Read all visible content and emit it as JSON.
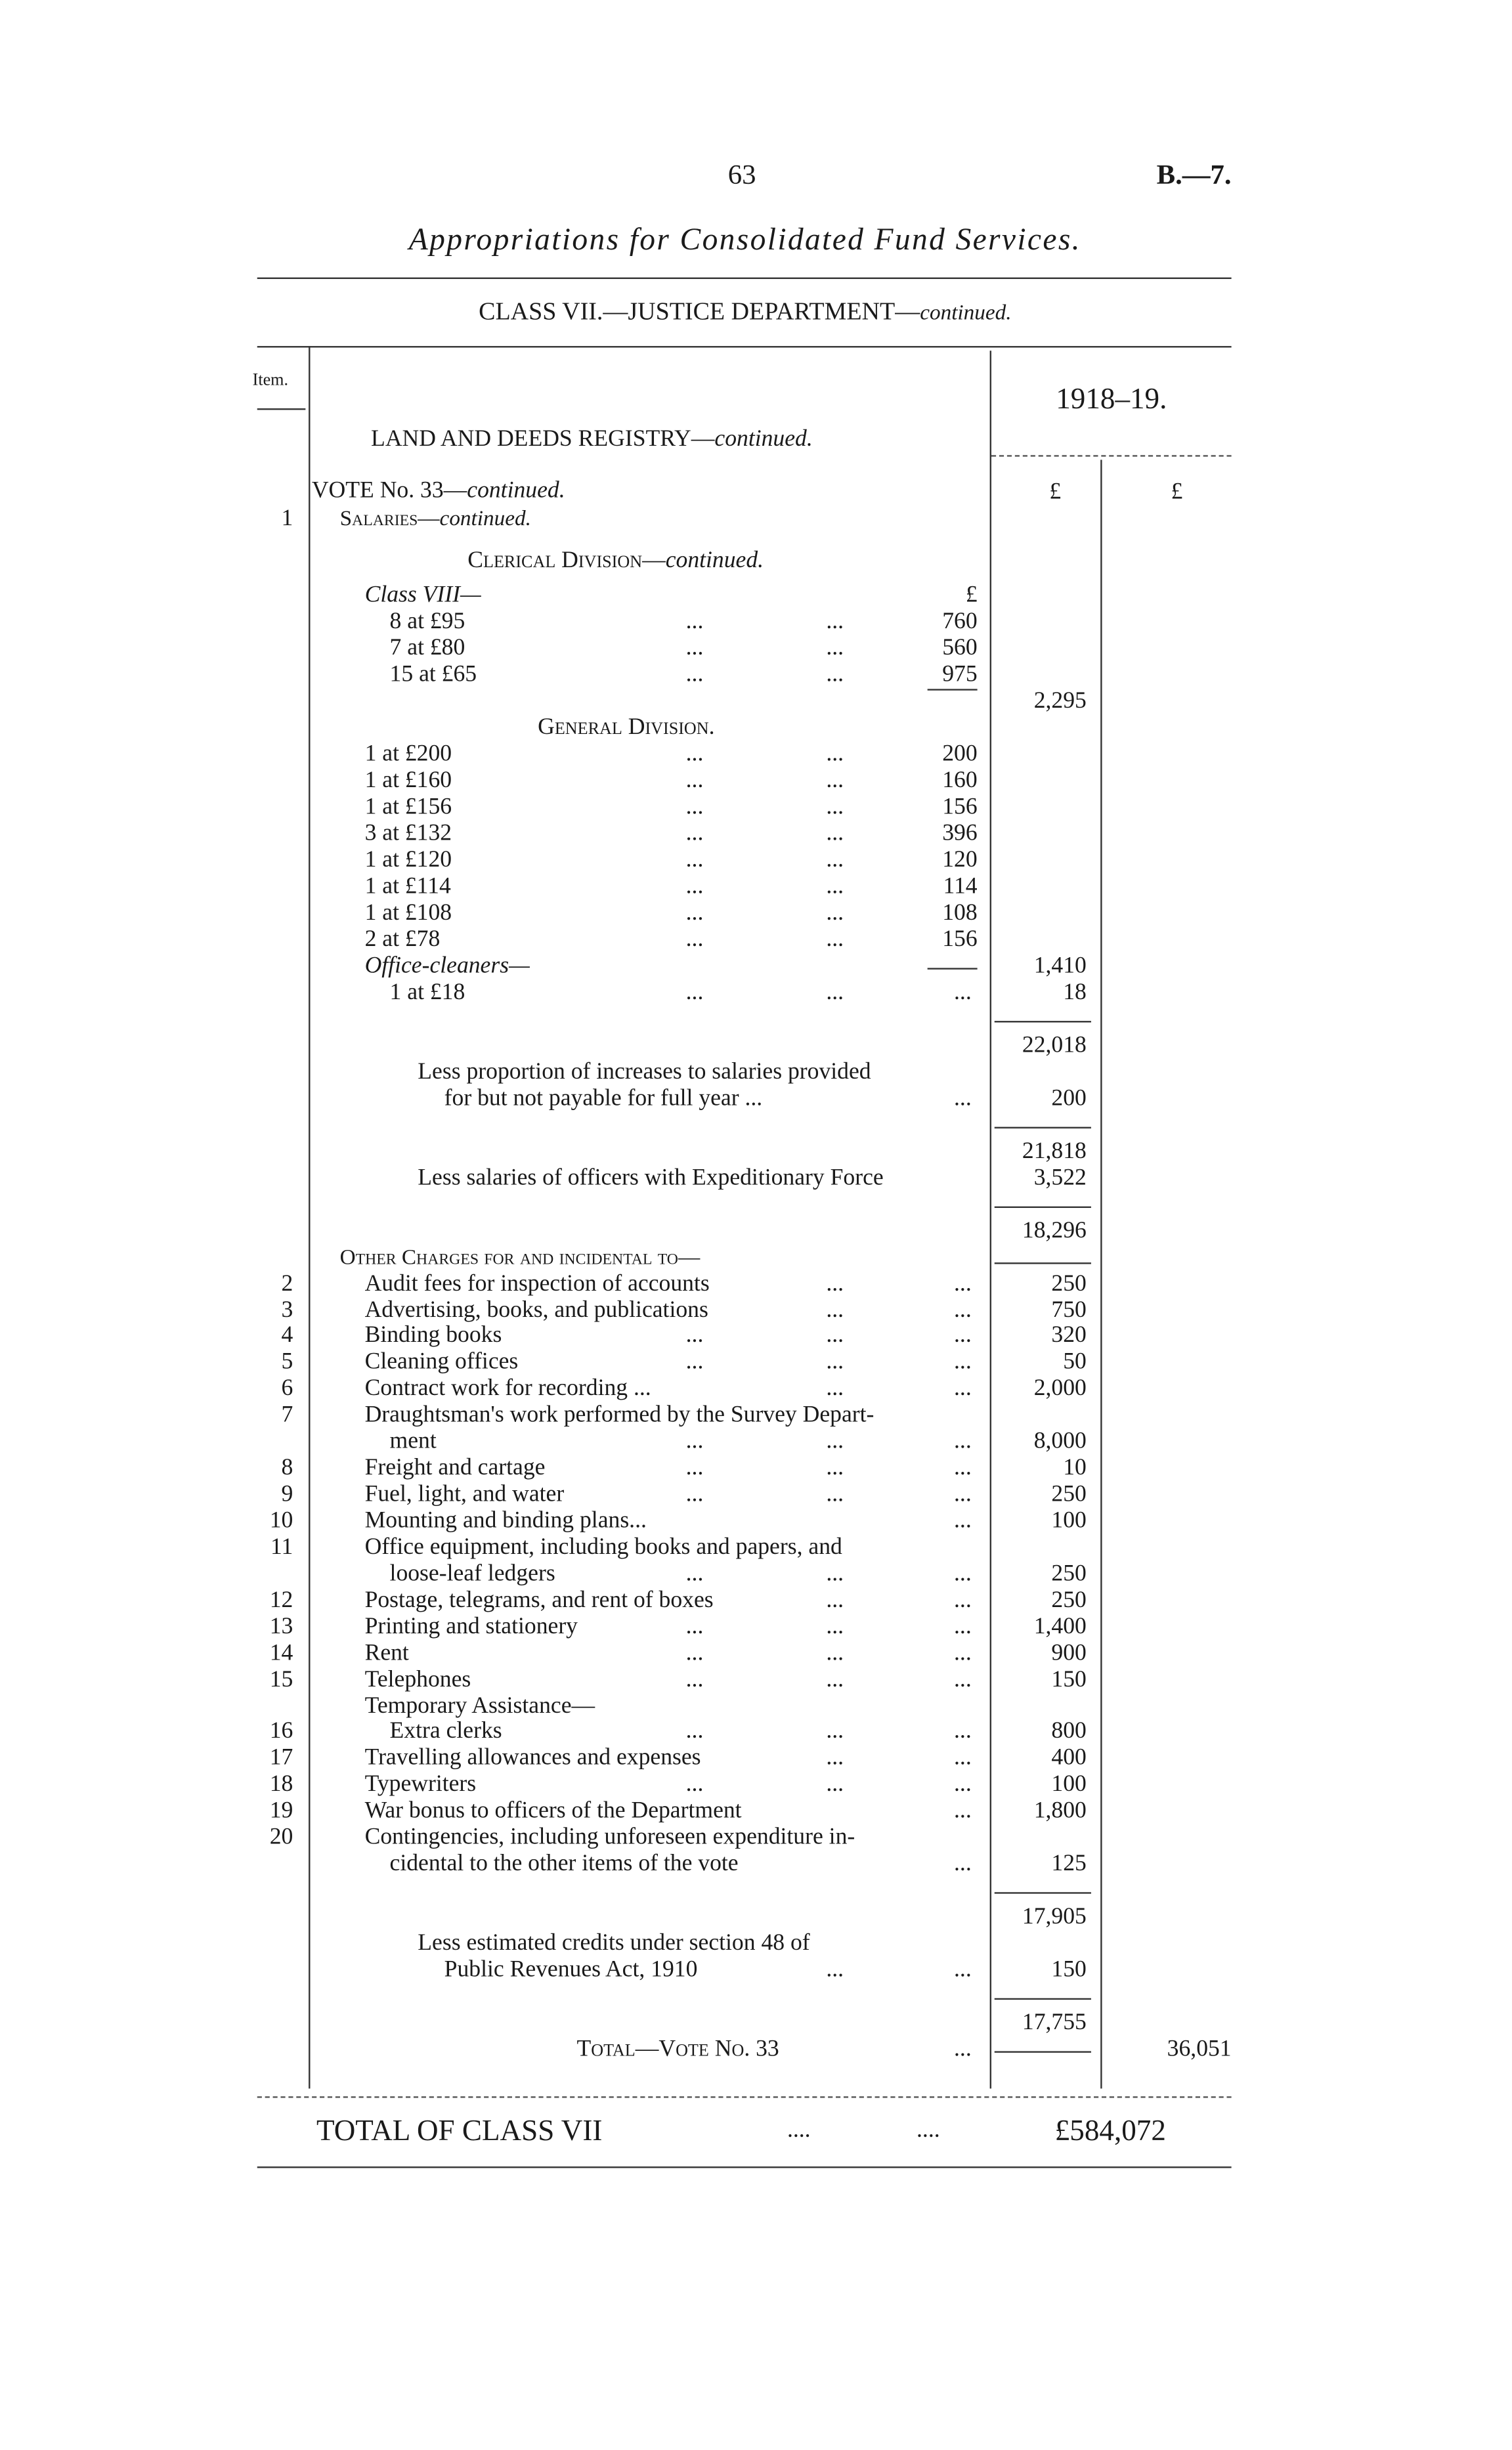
{
  "header": {
    "page_number": "63",
    "doc_ref": "B.—7.",
    "title": "Appropriations for Consolidated Fund Services.",
    "class_heading": "CLASS VII.—JUSTICE DEPARTMENT—",
    "class_heading_cont": "continued."
  },
  "table_header": {
    "item_label": "Item.",
    "year": "1918–19.",
    "section": "LAND AND DEEDS REGISTRY—",
    "section_cont": "continued.",
    "currency1": "£",
    "currency2": "£"
  },
  "leader": "...",
  "rows": [
    {
      "text": "VOTE No. 33—",
      "cont": "continued."
    },
    {
      "item": "1",
      "text": "Salaries—",
      "cont": "continued.",
      "style": "sc"
    },
    {
      "text": "Clerical Division—",
      "cont": "continued.",
      "style": "sc"
    },
    {
      "text": "Class VIII—",
      "style": "it",
      "inner": "£"
    },
    {
      "text": "8 at £95",
      "inner": "760"
    },
    {
      "text": "7 at £80",
      "inner": "560"
    },
    {
      "text": "15 at £65",
      "inner": "975"
    },
    {
      "amt1": "2,295"
    },
    {
      "text": "General Division.",
      "style": "sc"
    },
    {
      "text": "1 at £200",
      "inner": "200"
    },
    {
      "text": "1 at £160",
      "inner": "160"
    },
    {
      "text": "1 at £156",
      "inner": "156"
    },
    {
      "text": "3 at £132",
      "inner": "396"
    },
    {
      "text": "1 at £120",
      "inner": "120"
    },
    {
      "text": "1 at £114",
      "inner": "114"
    },
    {
      "text": "1 at £108",
      "inner": "108"
    },
    {
      "text": "2 at £78",
      "inner": "156"
    },
    {
      "text": "Office-cleaners—",
      "style": "it",
      "amt1": "1,410"
    },
    {
      "text": "1 at £18",
      "amt1": "18"
    },
    {
      "amt1": "22,018"
    },
    {
      "text": "Less proportion of increases to salaries provided"
    },
    {
      "text": "for but not payable for full year ...",
      "amt1": "200"
    },
    {
      "amt1": "21,818"
    },
    {
      "text": "Less salaries of officers with Expeditionary Force",
      "amt1": "3,522"
    },
    {
      "amt1": "18,296"
    },
    {
      "text": "Other Charges for and incidental to—",
      "style": "sc"
    },
    {
      "item": "2",
      "text": "Audit fees for inspection of accounts",
      "amt1": "250"
    },
    {
      "item": "3",
      "text": "Advertising, books, and publications",
      "amt1": "750"
    },
    {
      "item": "4",
      "text": "Binding books",
      "amt1": "320"
    },
    {
      "item": "5",
      "text": "Cleaning offices",
      "amt1": "50"
    },
    {
      "item": "6",
      "text": "Contract work for recording ...",
      "amt1": "2,000"
    },
    {
      "item": "7",
      "text": "Draughtsman's work performed by the Survey Depart-"
    },
    {
      "text": "ment",
      "amt1": "8,000"
    },
    {
      "item": "8",
      "text": "Freight and cartage",
      "amt1": "10"
    },
    {
      "item": "9",
      "text": "Fuel, light, and water",
      "amt1": "250"
    },
    {
      "item": "10",
      "text": "Mounting and binding plans...",
      "amt1": "100"
    },
    {
      "item": "11",
      "text": "Office equipment, including books and papers, and"
    },
    {
      "text": "loose-leaf ledgers",
      "amt1": "250"
    },
    {
      "item": "12",
      "text": "Postage, telegrams, and rent of boxes",
      "amt1": "250"
    },
    {
      "item": "13",
      "text": "Printing and stationery",
      "amt1": "1,400"
    },
    {
      "item": "14",
      "text": "Rent",
      "amt1": "900"
    },
    {
      "item": "15",
      "text": "Telephones",
      "amt1": "150"
    },
    {
      "text": "Temporary Assistance—"
    },
    {
      "item": "16",
      "text": "Extra clerks",
      "amt1": "800"
    },
    {
      "item": "17",
      "text": "Travelling allowances and expenses",
      "amt1": "400"
    },
    {
      "item": "18",
      "text": "Typewriters",
      "amt1": "100"
    },
    {
      "item": "19",
      "text": "War bonus to officers of the Department",
      "amt1": "1,800"
    },
    {
      "item": "20",
      "text": "Contingencies, including unforeseen expenditure in-"
    },
    {
      "text": "cidental to the other items of the vote",
      "amt1": "125"
    },
    {
      "amt1": "17,905"
    },
    {
      "text": "Less estimated credits under section 48 of"
    },
    {
      "text": "Public Revenues Act, 1910",
      "amt1": "150"
    },
    {
      "amt1": "17,755"
    },
    {
      "text": "Total—Vote No. 33",
      "style": "sc",
      "amt2": "36,051"
    }
  ],
  "class_total": {
    "label": "TOTAL OF CLASS VII",
    "leader": "....",
    "amount": "£584,072"
  }
}
